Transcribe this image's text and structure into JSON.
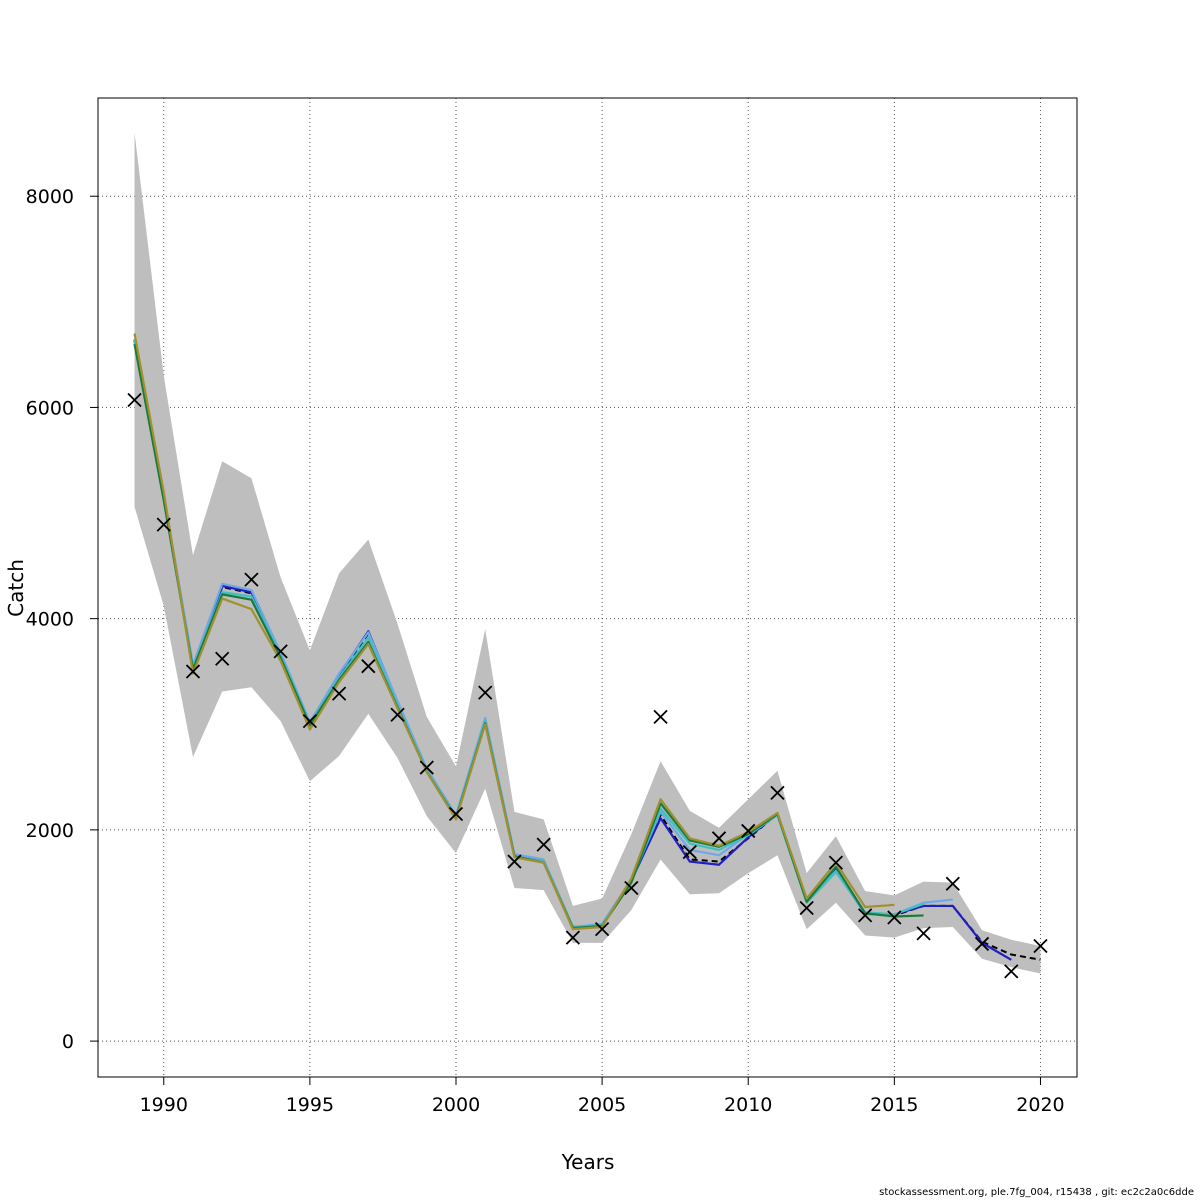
{
  "chart_data": {
    "type": "line",
    "title": "",
    "xlabel": "Years",
    "ylabel": "Catch",
    "xlim": [
      1987.75,
      2021.25
    ],
    "ylim": [
      -340,
      8930
    ],
    "x_ticks": [
      1990,
      1995,
      2000,
      2005,
      2010,
      2015,
      2020
    ],
    "y_ticks": [
      0,
      2000,
      4000,
      6000,
      8000
    ],
    "grid": true,
    "legend": "none",
    "confidence_band": {
      "color": "#bebebe",
      "x": [
        1989,
        1990,
        1991,
        1992,
        1993,
        1994,
        1995,
        1996,
        1997,
        1998,
        1999,
        2000,
        2001,
        2002,
        2003,
        2004,
        2005,
        2006,
        2007,
        2008,
        2009,
        2010,
        2011,
        2012,
        2013,
        2014,
        2015,
        2016,
        2017,
        2018,
        2019,
        2020
      ],
      "upper": [
        8600,
        6300,
        4600,
        5490,
        5330,
        4390,
        3700,
        4430,
        4750,
        3950,
        3070,
        2600,
        3900,
        2170,
        2100,
        1280,
        1350,
        1960,
        2650,
        2180,
        2020,
        2290,
        2560,
        1590,
        1940,
        1420,
        1380,
        1510,
        1500,
        1050,
        960,
        900
      ],
      "lower": [
        5060,
        4120,
        2690,
        3310,
        3350,
        3030,
        2460,
        2700,
        3100,
        2680,
        2130,
        1780,
        2390,
        1450,
        1430,
        930,
        930,
        1240,
        1720,
        1390,
        1400,
        1590,
        1760,
        1060,
        1310,
        1000,
        980,
        1070,
        1080,
        780,
        700,
        640
      ]
    },
    "observed": {
      "marker": "×",
      "color": "#000000",
      "x": [
        1989,
        1990,
        1991,
        1992,
        1993,
        1994,
        1995,
        1996,
        1997,
        1998,
        1999,
        2000,
        2001,
        2002,
        2003,
        2004,
        2005,
        2006,
        2007,
        2008,
        2009,
        2010,
        2011,
        2012,
        2013,
        2014,
        2015,
        2016,
        2017,
        2018,
        2019,
        2020
      ],
      "y": [
        6070,
        4890,
        3500,
        3620,
        4370,
        3690,
        3030,
        3290,
        3550,
        3090,
        2590,
        2150,
        3300,
        1700,
        1860,
        980,
        1060,
        1450,
        3070,
        1790,
        1920,
        1990,
        2350,
        1260,
        1690,
        1190,
        1170,
        1020,
        1490,
        920,
        660,
        900
      ]
    },
    "series": [
      {
        "color": "#000000",
        "dashed": true,
        "x": [
          1989,
          1990,
          1991,
          1992,
          1993,
          1994,
          1995,
          1996,
          1997,
          1998,
          1999,
          2000,
          2001,
          2002,
          2003,
          2004,
          2005,
          2006,
          2007,
          2008,
          2009,
          2010,
          2011,
          2012,
          2013,
          2014,
          2015,
          2016,
          2017,
          2018,
          2019,
          2020
        ],
        "values": [
          6630,
          5150,
          3540,
          4300,
          4240,
          3660,
          3010,
          3460,
          3860,
          3200,
          2560,
          2130,
          3040,
          1760,
          1710,
          1080,
          1100,
          1520,
          2140,
          1720,
          1700,
          1920,
          2150,
          1320,
          1640,
          1210,
          1190,
          1280,
          1280,
          940,
          820,
          770
        ]
      },
      {
        "color": "#2020c0",
        "dashed": false,
        "x": [
          1989,
          1990,
          1991,
          1992,
          1993,
          1994,
          1995,
          1996,
          1997,
          1998,
          1999,
          2000,
          2001,
          2002,
          2003,
          2004,
          2005,
          2006,
          2007,
          2008,
          2009,
          2010,
          2011,
          2012,
          2013,
          2014,
          2015,
          2016,
          2017,
          2018,
          2019
        ],
        "values": [
          6640,
          5160,
          3550,
          4310,
          4250,
          3670,
          3010,
          3470,
          3880,
          3210,
          2570,
          2130,
          3050,
          1760,
          1710,
          1080,
          1100,
          1520,
          2110,
          1700,
          1670,
          1930,
          2150,
          1320,
          1640,
          1210,
          1200,
          1280,
          1280,
          930,
          770
        ]
      },
      {
        "color": "#6fa8e8",
        "dashed": false,
        "x": [
          1989,
          1990,
          1991,
          1992,
          1993,
          1994,
          1995,
          1996,
          1997,
          1998,
          1999,
          2000,
          2001,
          2002,
          2003,
          2004,
          2005,
          2006,
          2007,
          2008,
          2009,
          2010,
          2011,
          2012,
          2013,
          2014,
          2015,
          2016,
          2017
        ],
        "values": [
          6650,
          5170,
          3560,
          4330,
          4270,
          3680,
          3020,
          3480,
          3870,
          3220,
          2580,
          2140,
          3060,
          1770,
          1720,
          1080,
          1110,
          1530,
          2170,
          1810,
          1760,
          1960,
          2160,
          1330,
          1610,
          1200,
          1200,
          1310,
          1340
        ]
      },
      {
        "color": "#40c0c0",
        "dashed": false,
        "x": [
          1989,
          1990,
          1991,
          1992,
          1993,
          1994,
          1995,
          1996,
          1997,
          1998,
          1999,
          2000,
          2001,
          2002,
          2003,
          2004,
          2005,
          2006,
          2007,
          2008,
          2009,
          2010,
          2011,
          2012,
          2013,
          2014,
          2015,
          2016
        ],
        "values": [
          6620,
          5140,
          3530,
          4250,
          4210,
          3650,
          3000,
          3440,
          3820,
          3180,
          2560,
          2120,
          3030,
          1750,
          1700,
          1080,
          1100,
          1510,
          2200,
          1870,
          1810,
          1950,
          2140,
          1310,
          1600,
          1220,
          1200,
          1300
        ]
      },
      {
        "color": "#1a7a3a",
        "dashed": false,
        "x": [
          1989,
          1990,
          1991,
          1992,
          1993,
          1994,
          1995,
          1996,
          1997,
          1998,
          1999,
          2000,
          2001,
          2002,
          2003,
          2004,
          2005,
          2006,
          2007,
          2008,
          2009,
          2010,
          2011,
          2012,
          2013,
          2014,
          2015,
          2016
        ],
        "values": [
          6600,
          5120,
          3520,
          4230,
          4180,
          3630,
          2990,
          3420,
          3780,
          3160,
          2550,
          2110,
          3010,
          1750,
          1690,
          1070,
          1090,
          1500,
          2250,
          1900,
          1840,
          1960,
          2150,
          1320,
          1650,
          1210,
          1180,
          1190
        ]
      },
      {
        "color": "#a09030",
        "dashed": false,
        "x": [
          1989,
          1990,
          1991,
          1992,
          1993,
          1994,
          1995,
          1996,
          1997,
          1998,
          1999,
          2000,
          2001,
          2002,
          2003,
          2004,
          2005,
          2006,
          2007,
          2008,
          2009,
          2010,
          2011,
          2012,
          2013,
          2014,
          2015
        ],
        "values": [
          6700,
          5200,
          3480,
          4190,
          4090,
          3600,
          2950,
          3400,
          3760,
          3150,
          2550,
          2100,
          3000,
          1740,
          1690,
          1060,
          1080,
          1540,
          2290,
          1920,
          1850,
          1980,
          2160,
          1350,
          1690,
          1270,
          1290
        ]
      }
    ]
  },
  "footer": "stockassessment.org, ple.7fg_004, r15438 , git: ec2c2a0c6dde"
}
